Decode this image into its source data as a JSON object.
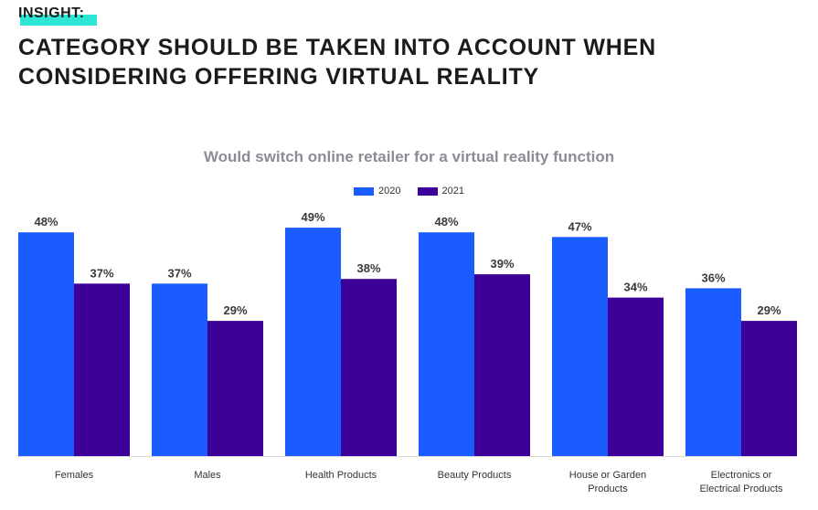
{
  "header": {
    "tag": "INSIGHT:",
    "headline_line1": "CATEGORY SHOULD BE TAKEN INTO ACCOUNT WHEN",
    "headline_line2": "CONSIDERING OFFERING VIRTUAL REALITY"
  },
  "colors": {
    "series_2020": "#1a5cff",
    "series_2021": "#3d0099",
    "baseline": "#d9d9d9"
  },
  "chart_data": {
    "type": "bar",
    "title": "Would switch online retailer for a virtual reality function",
    "xlabel": "",
    "ylabel": "",
    "ylim": [
      0,
      50
    ],
    "categories": [
      [
        "Females"
      ],
      [
        "Males"
      ],
      [
        "Health Products"
      ],
      [
        "Beauty Products"
      ],
      [
        "House or Garden",
        "Products"
      ],
      [
        "Electronics or",
        "Electrical  Products"
      ]
    ],
    "series": [
      {
        "name": "2020",
        "values": [
          48,
          37,
          49,
          48,
          47,
          36
        ],
        "labels": [
          "48%",
          "37%",
          "49%",
          "48%",
          "47%",
          "36%"
        ]
      },
      {
        "name": "2021",
        "values": [
          37,
          29,
          38,
          39,
          34,
          29
        ],
        "labels": [
          "37%",
          "29%",
          "38%",
          "39%",
          "34%",
          "29%"
        ]
      }
    ],
    "legend_position": "top-center",
    "grid": false
  }
}
